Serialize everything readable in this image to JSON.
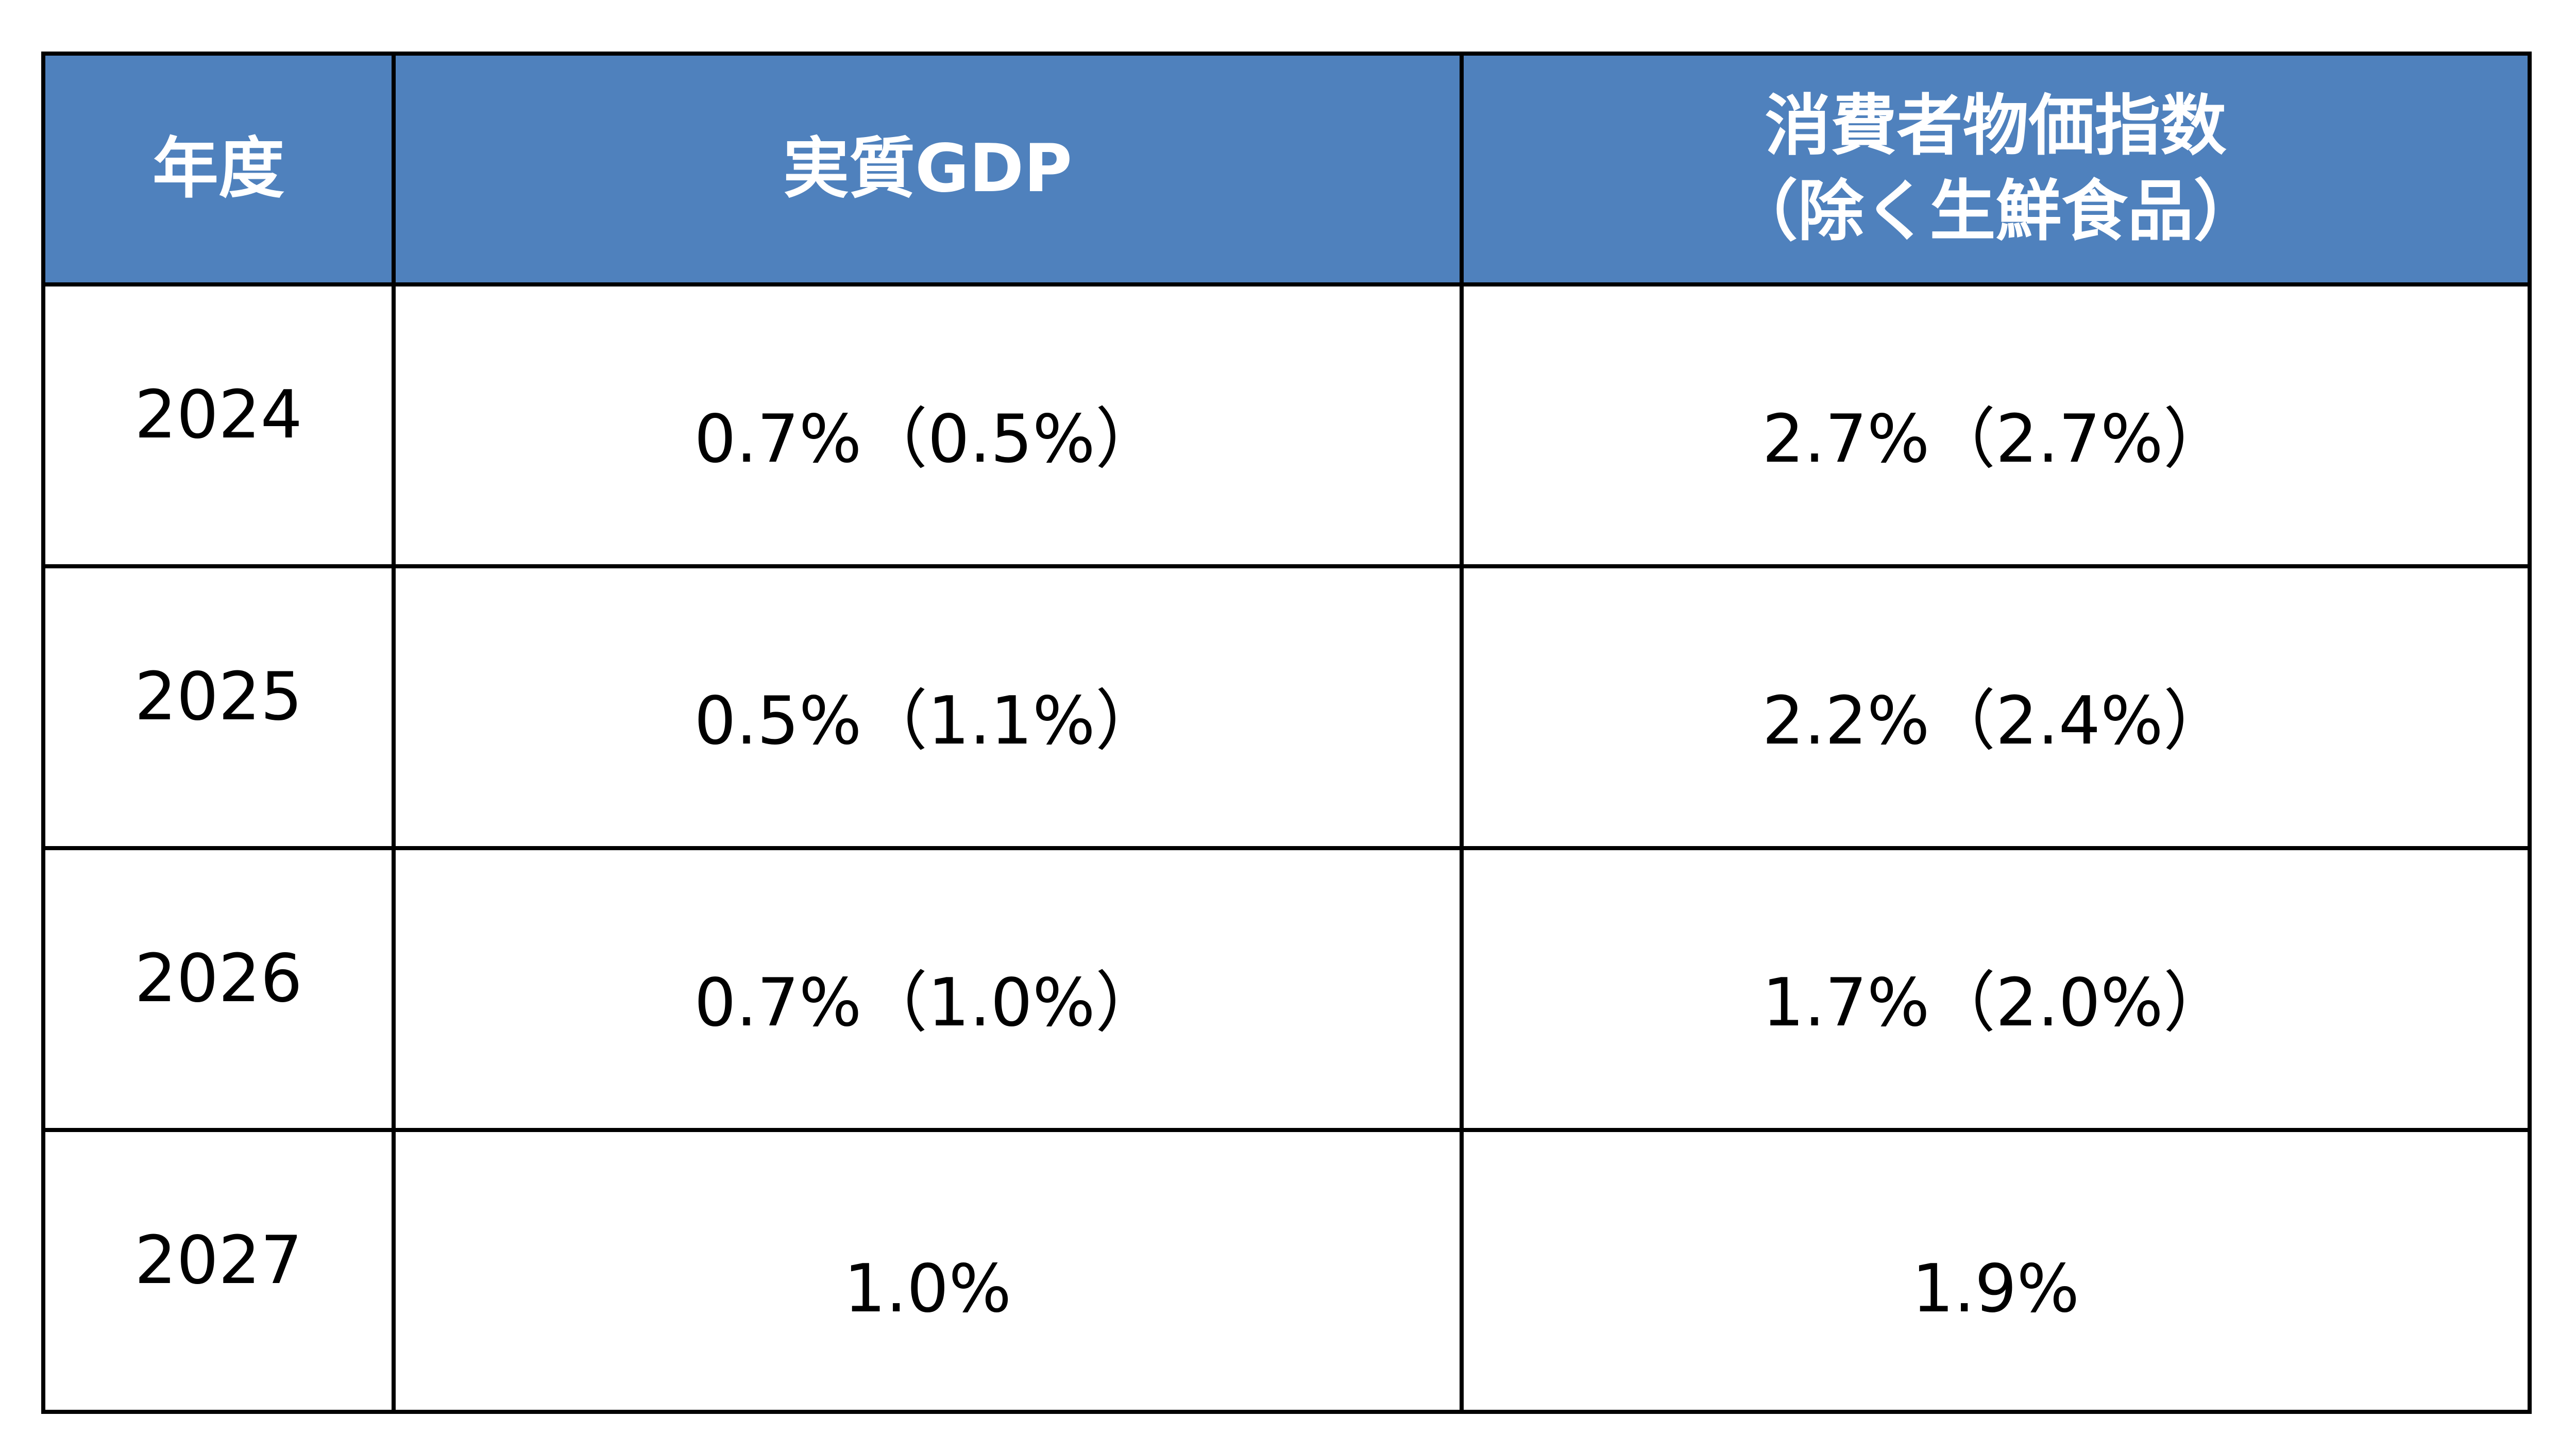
{
  "table": {
    "headers": {
      "year": "年度",
      "gdp": "実質GDP",
      "cpi_line1": "消費者物価指数",
      "cpi_line2": "（除く生鮮食品）"
    },
    "rows": [
      {
        "year": "2024",
        "gdp": "0.7%（0.5%）",
        "cpi": "2.7%（2.7%）"
      },
      {
        "year": "2025",
        "gdp": "0.5%（1.1%）",
        "cpi": "2.2%（2.4%）"
      },
      {
        "year": "2026",
        "gdp": "0.7%（1.0%）",
        "cpi": "1.7%（2.0%）"
      },
      {
        "year": "2027",
        "gdp": "1.0%",
        "cpi": "1.9%"
      }
    ]
  },
  "colors": {
    "header_bg": "#4f81bd",
    "header_text": "#ffffff",
    "border": "#000000",
    "body_text": "#000000"
  }
}
